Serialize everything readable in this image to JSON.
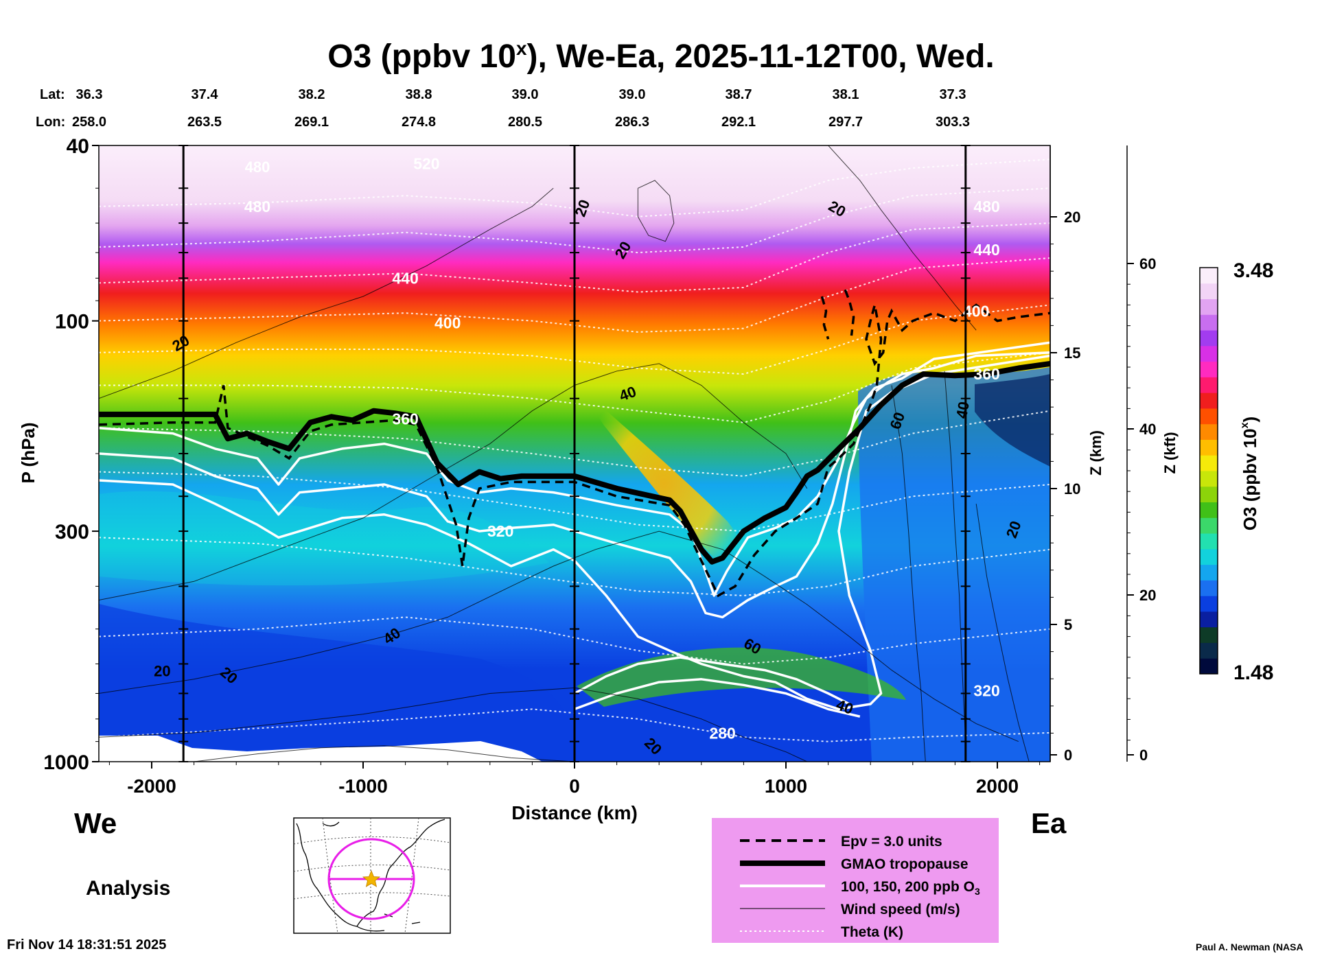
{
  "chart_data": {
    "type": "heatmap",
    "title_prefix": "O3 (ppbv 10",
    "title_sup": "x",
    "title_suffix": "), We-Ea, 2025-11-12T00, Wed.",
    "lat_label": "Lat:",
    "lon_label": "Lon:",
    "lats": [
      "36.3",
      "37.4",
      "38.2",
      "38.8",
      "39.0",
      "39.0",
      "38.7",
      "38.1",
      "37.3"
    ],
    "lons": [
      "258.0",
      "263.5",
      "269.1",
      "274.8",
      "280.5",
      "286.3",
      "292.1",
      "297.7",
      "303.3"
    ],
    "xlabel": "Distance (km)",
    "xticks": [
      "-2000",
      "-1000",
      "0",
      "1000",
      "2000"
    ],
    "xtick_values": [
      -2000,
      -1000,
      0,
      1000,
      2000
    ],
    "xlim": [
      -2250,
      2250
    ],
    "ylabel": "P (hPa)",
    "yticks": [
      "40",
      "100",
      "300",
      "1000"
    ],
    "ytick_values": [
      40,
      100,
      300,
      1000
    ],
    "ylim": [
      1000,
      40
    ],
    "z_km_label": "Z (km)",
    "z_km_ticks": [
      "0",
      "5",
      "10",
      "15",
      "20"
    ],
    "z_kft_label": "Z (kft)",
    "z_kft_ticks": [
      "0",
      "20",
      "40",
      "60"
    ],
    "colorbar_label": "O3 (ppbv 10",
    "colorbar_label_sup": "x",
    "colorbar_label_end": ")",
    "colorbar_max": "3.48",
    "colorbar_min": "1.48",
    "colorbar_colors": [
      "#000a3c",
      "#0a2a4a",
      "#0e3b27",
      "#0a1fa0",
      "#0a3fe0",
      "#1a70f0",
      "#14a6ee",
      "#12d2dc",
      "#22e0b0",
      "#3bd86a",
      "#40c018",
      "#8cd40a",
      "#c8e60a",
      "#f5ea0a",
      "#ffbe00",
      "#ff8a00",
      "#ff5000",
      "#f01e1e",
      "#ff1a6e",
      "#ff2bc0",
      "#d830e6",
      "#a23cf0",
      "#c86ef0",
      "#e2a4f2",
      "#f2d4f6",
      "#fbeefb"
    ],
    "theta_labels": [
      "520",
      "480",
      "440",
      "400",
      "360",
      "320",
      "280",
      "480",
      "440",
      "400",
      "360",
      "320"
    ],
    "wind_labels": [
      "20",
      "20",
      "20",
      "20",
      "40",
      "40",
      "20",
      "60",
      "40",
      "60",
      "20",
      "40",
      "20",
      "20"
    ],
    "tropopause_hpa": [
      [
        -2250,
        163
      ],
      [
        -1700,
        163
      ],
      [
        -1640,
        185
      ],
      [
        -1550,
        180
      ],
      [
        -1450,
        188
      ],
      [
        -1350,
        195
      ],
      [
        -1250,
        170
      ],
      [
        -1150,
        165
      ],
      [
        -1050,
        168
      ],
      [
        -950,
        160
      ],
      [
        -850,
        162
      ],
      [
        -750,
        165
      ],
      [
        -650,
        210
      ],
      [
        -550,
        235
      ],
      [
        -450,
        220
      ],
      [
        -350,
        228
      ],
      [
        -250,
        225
      ],
      [
        0,
        225
      ],
      [
        200,
        240
      ],
      [
        450,
        255
      ],
      [
        500,
        270
      ],
      [
        600,
        330
      ],
      [
        650,
        352
      ],
      [
        700,
        345
      ],
      [
        800,
        300
      ],
      [
        900,
        280
      ],
      [
        1000,
        265
      ],
      [
        1050,
        245
      ],
      [
        1100,
        225
      ],
      [
        1150,
        218
      ],
      [
        1250,
        195
      ],
      [
        1350,
        175
      ],
      [
        1450,
        155
      ],
      [
        1550,
        140
      ],
      [
        1650,
        132
      ],
      [
        1800,
        133
      ],
      [
        1950,
        132
      ],
      [
        2100,
        128
      ],
      [
        2250,
        125
      ]
    ],
    "legend": [
      {
        "style": "dashed",
        "label": "Epv = 3.0 units"
      },
      {
        "style": "thick",
        "label": "GMAO tropopause"
      },
      {
        "style": "white",
        "label": "100, 150, 200 ppb O",
        "sub": "3"
      },
      {
        "style": "thin",
        "label": "Wind speed (m/s)"
      },
      {
        "style": "dotted",
        "label": "Theta (K)"
      }
    ]
  },
  "labels": {
    "left_region": "We",
    "right_region": "Ea",
    "analysis": "Analysis",
    "timestamp": "Fri Nov 14 18:31:51 2025",
    "credit": "Paul A. Newman (NASA"
  },
  "colors": {
    "legend_bg": "#ee9af0",
    "map_track": "#e81ee8",
    "map_star": "#f2b400"
  }
}
